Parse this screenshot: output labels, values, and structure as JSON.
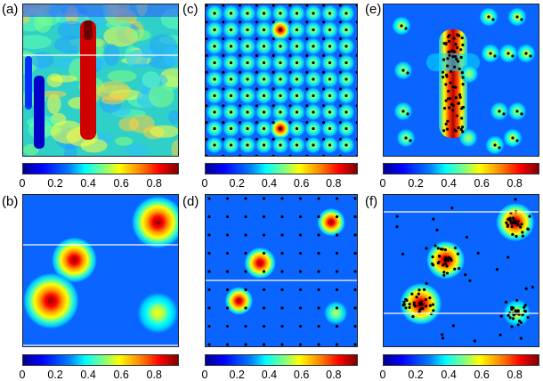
{
  "labels": {
    "a": "(a)",
    "b": "(b)",
    "c": "(c)",
    "d": "(d)",
    "e": "(e)",
    "f": "(f)"
  },
  "colorbar_ticks": [
    "0",
    "0.2",
    "0.4",
    "0.6",
    "0.8"
  ],
  "colormap": "jet",
  "chart_data": [
    {
      "type": "heatmap",
      "panel": "(a)",
      "title": "",
      "colorbar_range": [
        0,
        0.95
      ],
      "colorbar_ticks": [
        0,
        0.2,
        0.4,
        0.6,
        0.8
      ],
      "description_values": "noisy field; high vertical streak at x≈0.4, low streaks near left edge"
    },
    {
      "type": "heatmap",
      "panel": "(b)",
      "colorbar_range": [
        0,
        0.95
      ],
      "colorbar_ticks": [
        0,
        0.2,
        0.4,
        0.6,
        0.8
      ],
      "sources": [
        {
          "x": 0.87,
          "y": 0.82,
          "peak": 0.9
        },
        {
          "x": 0.33,
          "y": 0.57,
          "peak": 0.85
        },
        {
          "x": 0.18,
          "y": 0.3,
          "peak": 0.9
        },
        {
          "x": 0.87,
          "y": 0.22,
          "peak": 0.65
        }
      ]
    },
    {
      "type": "heatmap",
      "panel": "(c)",
      "colorbar_range": [
        0,
        0.95
      ],
      "colorbar_ticks": [
        0,
        0.2,
        0.4,
        0.6,
        0.8
      ],
      "grid_spots": "10x10 periodic pattern, peaks ~0.55, two high spots at column 5"
    },
    {
      "type": "heatmap",
      "panel": "(d)",
      "colorbar_range": [
        0,
        0.95
      ],
      "colorbar_ticks": [
        0,
        0.2,
        0.4,
        0.6,
        0.8
      ],
      "sources": [
        {
          "x": 0.83,
          "y": 0.82,
          "peak": 0.85
        },
        {
          "x": 0.36,
          "y": 0.55,
          "peak": 0.9
        },
        {
          "x": 0.22,
          "y": 0.3,
          "peak": 0.85
        },
        {
          "x": 0.86,
          "y": 0.22,
          "peak": 0.55
        }
      ]
    },
    {
      "type": "heatmap",
      "panel": "(e)",
      "colorbar_range": [
        0,
        0.95
      ],
      "colorbar_ticks": [
        0,
        0.2,
        0.4,
        0.6,
        0.8
      ],
      "feature": "vertical high streak at x≈0.45 spanning y 0.15–0.9"
    },
    {
      "type": "heatmap",
      "panel": "(f)",
      "colorbar_range": [
        0,
        0.95
      ],
      "colorbar_ticks": [
        0,
        0.2,
        0.4,
        0.6,
        0.8
      ],
      "sources": [
        {
          "x": 0.85,
          "y": 0.82,
          "peak": 0.9
        },
        {
          "x": 0.4,
          "y": 0.57,
          "peak": 0.9
        },
        {
          "x": 0.24,
          "y": 0.28,
          "peak": 0.95
        },
        {
          "x": 0.86,
          "y": 0.22,
          "peak": 0.6
        }
      ]
    }
  ]
}
